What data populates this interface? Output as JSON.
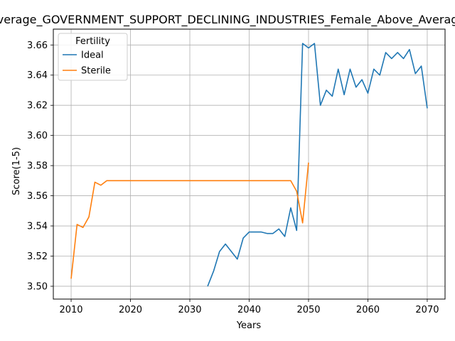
{
  "chart_data": {
    "type": "line",
    "title": "Average_GOVERNMENT_SUPPORT_DECLINING_INDUSTRIES_Female_Above_Average",
    "xlabel": "Years",
    "ylabel": "Score(1-5)",
    "xlim": [
      2007,
      2073
    ],
    "ylim": [
      3.4915,
      3.6705
    ],
    "xticks": [
      2010,
      2020,
      2030,
      2040,
      2050,
      2060,
      2070
    ],
    "yticks": [
      3.5,
      3.52,
      3.54,
      3.56,
      3.58,
      3.6,
      3.62,
      3.64,
      3.66
    ],
    "ytick_labels": [
      "3.50",
      "3.52",
      "3.54",
      "3.56",
      "3.58",
      "3.60",
      "3.62",
      "3.64",
      "3.66"
    ],
    "grid": true,
    "legend": {
      "title": "Fertility",
      "position": "upper-left"
    },
    "series": [
      {
        "name": "Ideal",
        "color": "#1f77b4",
        "x": [
          2033,
          2034,
          2035,
          2036,
          2037,
          2038,
          2039,
          2040,
          2041,
          2042,
          2043,
          2044,
          2045,
          2046,
          2047,
          2048,
          2049,
          2050,
          2051,
          2052,
          2053,
          2054,
          2055,
          2056,
          2057,
          2058,
          2059,
          2060,
          2061,
          2062,
          2063,
          2064,
          2065,
          2066,
          2067,
          2068,
          2069,
          2070
        ],
        "y": [
          3.5,
          3.51,
          3.523,
          3.528,
          3.523,
          3.518,
          3.532,
          3.536,
          3.536,
          3.536,
          3.535,
          3.535,
          3.538,
          3.533,
          3.552,
          3.537,
          3.661,
          3.658,
          3.661,
          3.62,
          3.63,
          3.626,
          3.644,
          3.627,
          3.644,
          3.632,
          3.637,
          3.628,
          3.644,
          3.64,
          3.655,
          3.651,
          3.655,
          3.651,
          3.657,
          3.641,
          3.646,
          3.618
        ]
      },
      {
        "name": "Sterile",
        "color": "#ff7f0e",
        "x": [
          2010,
          2011,
          2012,
          2013,
          2014,
          2015,
          2016,
          2017,
          2018,
          2019,
          2020,
          2021,
          2022,
          2023,
          2024,
          2025,
          2026,
          2027,
          2028,
          2029,
          2030,
          2031,
          2032,
          2033,
          2034,
          2035,
          2036,
          2037,
          2038,
          2039,
          2040,
          2041,
          2042,
          2043,
          2044,
          2045,
          2046,
          2047,
          2048,
          2049,
          2050
        ],
        "y": [
          3.505,
          3.541,
          3.539,
          3.546,
          3.569,
          3.567,
          3.57,
          3.57,
          3.57,
          3.57,
          3.57,
          3.57,
          3.57,
          3.57,
          3.57,
          3.57,
          3.57,
          3.57,
          3.57,
          3.57,
          3.57,
          3.57,
          3.57,
          3.57,
          3.57,
          3.57,
          3.57,
          3.57,
          3.57,
          3.57,
          3.57,
          3.57,
          3.57,
          3.57,
          3.57,
          3.57,
          3.57,
          3.57,
          3.563,
          3.542,
          3.582
        ]
      }
    ]
  }
}
